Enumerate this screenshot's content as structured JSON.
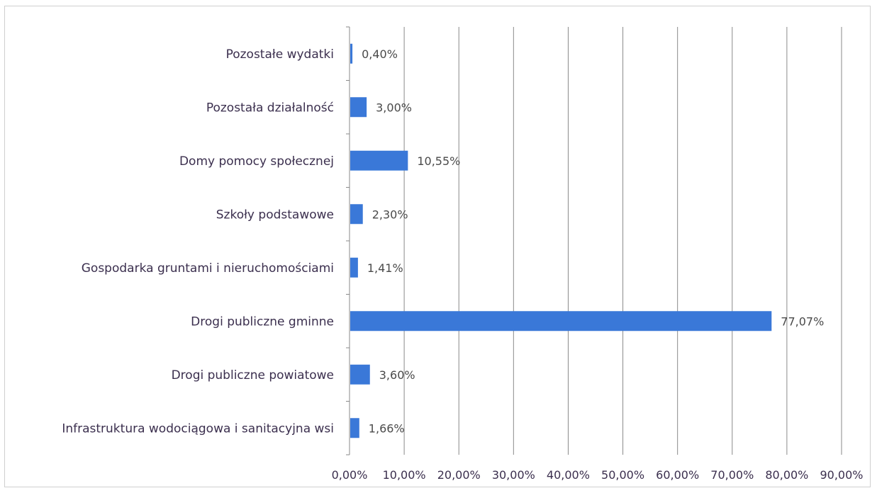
{
  "chart_data": {
    "type": "bar",
    "orientation": "horizontal",
    "categories": [
      "Pozostałe wydatki",
      "Pozostała działalność",
      "Domy pomocy społecznej",
      "Szkoły podstawowe",
      "Gospodarka gruntami i nieruchomościami",
      "Drogi publiczne gminne",
      "Drogi publiczne powiatowe",
      "Infrastruktura wodociągowa i sanitacyjna wsi"
    ],
    "values": [
      0.4,
      3.0,
      10.55,
      2.3,
      1.41,
      77.07,
      3.6,
      1.66
    ],
    "data_labels": [
      "0,40%",
      "3,00%",
      "10,55%",
      "2,30%",
      "1,41%",
      "77,07%",
      "3,60%",
      "1,66%"
    ],
    "xlim": [
      0,
      90
    ],
    "x_ticks": [
      "0,00%",
      "10,00%",
      "20,00%",
      "30,00%",
      "40,00%",
      "50,00%",
      "60,00%",
      "70,00%",
      "80,00%",
      "90,00%"
    ],
    "grid": true,
    "legend": "none",
    "bar_color": "#3a78d8"
  }
}
